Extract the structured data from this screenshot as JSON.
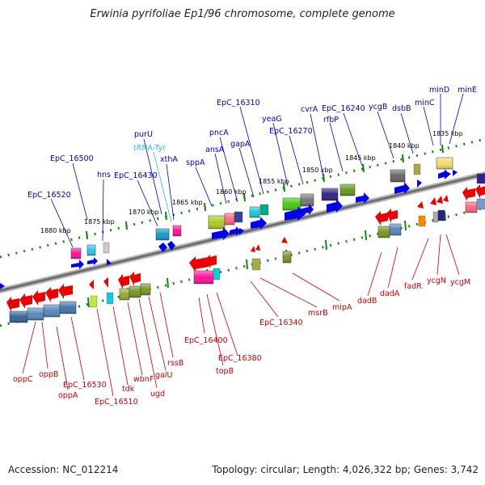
{
  "title": "Erwinia pyrifoliae Ep1/96 chromosome, complete genome",
  "footer": {
    "accession": "Accession: NC_012214",
    "stats": "Topology: circular; Length: 4,026,322 bp; Genes: 3,742"
  },
  "colors": {
    "top_label": "#0000cc",
    "trna_label": "#33bbdd",
    "bottom_label": "#cc0000",
    "tick": "#118811",
    "backbone": "#888888",
    "forward_arrow": "#0000ee",
    "reverse_arrow": "#ee0000"
  },
  "kbp_ticks": [
    "1880 kbp",
    "1875 kbp",
    "1870 kbp",
    "1865 kbp",
    "1860 kbp",
    "1855 kbp",
    "1850 kbp",
    "1845 kbp",
    "1840 kbp",
    "1835 kbp"
  ],
  "top_genes": [
    "EpC_16520",
    "EpC_16500",
    "hns",
    "EpC_16430",
    "purU",
    "tRNA-Tyr",
    "xthA",
    "sppA",
    "ansA",
    "pncA",
    "gapA",
    "EpC_16310",
    "yeaG",
    "EpC_16270",
    "cvrA",
    "rfbP",
    "EpC_16240",
    "ycgB",
    "dsbB",
    "minC",
    "minD",
    "minE"
  ],
  "bottom_genes": [
    "oppC",
    "oppB",
    "oppA",
    "EpC_16530",
    "EpC_16510",
    "tdk",
    "wbnF",
    "ugd",
    "galU",
    "rssB",
    "EpC_16400",
    "topB",
    "EpC_16380",
    "EpC_16340",
    "msrB",
    "mipA",
    "dadB",
    "dadA",
    "fadR",
    "ycgN",
    "ycgM"
  ]
}
